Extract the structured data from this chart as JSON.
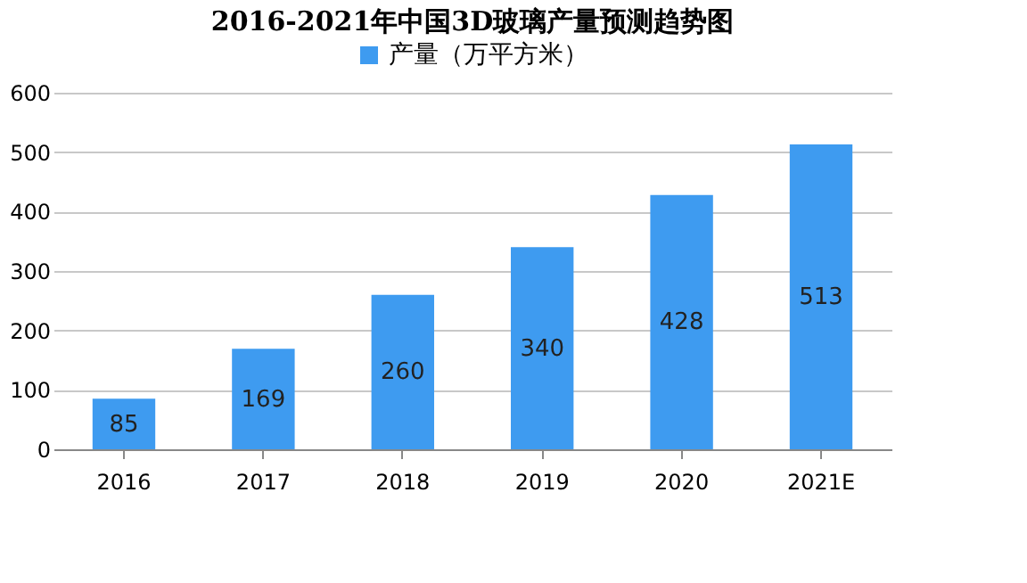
{
  "chart_data": {
    "type": "bar",
    "title": "2016-2021年中国3D玻璃产量预测趋势图",
    "categories": [
      "2016",
      "2017",
      "2018",
      "2019",
      "2020",
      "2021E"
    ],
    "series": [
      {
        "name": "产量（万平方米）",
        "color": "#3e9bf0",
        "values": [
          85,
          169,
          260,
          340,
          428,
          513
        ]
      }
    ],
    "ylim": [
      0,
      600
    ],
    "yticks": [
      0,
      100,
      200,
      300,
      400,
      500,
      600
    ],
    "grid": "y",
    "legend": "top",
    "data_labels": true
  }
}
